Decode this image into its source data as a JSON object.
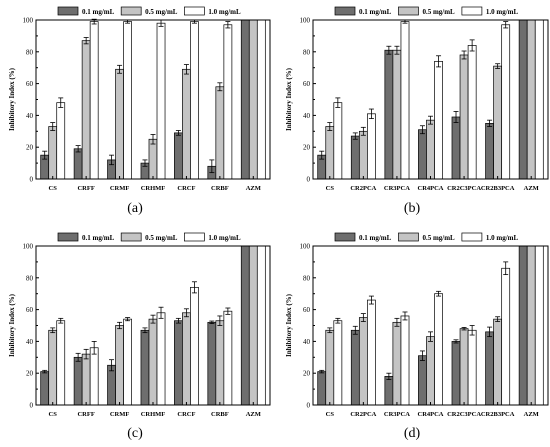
{
  "chart_data": [
    {
      "type": "bar",
      "panel_label": "(a)",
      "ylabel": "Inhibitory Index (%)",
      "ylim": [
        0,
        100
      ],
      "yticks": [
        0,
        20,
        40,
        60,
        80,
        100
      ],
      "legend": "top",
      "categories": [
        "CS",
        "CRFF",
        "CRMF",
        "CRHMF",
        "CRCF",
        "CRBF",
        "AZM"
      ],
      "series": [
        {
          "name": "0.1 mg/mL",
          "color": "#6e6e6e",
          "values": [
            15,
            19,
            12,
            10,
            29,
            8,
            100
          ],
          "errors": [
            2.5,
            2,
            3,
            2,
            1.5,
            4,
            0
          ]
        },
        {
          "name": "0.5 mg/mL",
          "color": "#c4c4c4",
          "values": [
            33,
            87,
            69,
            25,
            69,
            58,
            100
          ],
          "errors": [
            2.5,
            2,
            2.5,
            3,
            3,
            2.5,
            0
          ]
        },
        {
          "name": "1.0 mg/mL",
          "color": "#ffffff",
          "values": [
            48,
            99,
            99,
            98,
            99,
            97,
            100
          ],
          "errors": [
            3,
            1.5,
            1,
            2,
            1,
            2,
            0
          ]
        }
      ]
    },
    {
      "type": "bar",
      "panel_label": "(b)",
      "ylabel": "Inhibitory Index (%)",
      "ylim": [
        0,
        100
      ],
      "yticks": [
        0,
        20,
        40,
        60,
        80,
        100
      ],
      "legend": "top",
      "categories": [
        "CS",
        "CR2PCA",
        "CR3PCA",
        "CR4PCA",
        "CR2C3PCA",
        "CR2B3PCA",
        "AZM"
      ],
      "series": [
        {
          "name": "0.1 mg/mL",
          "color": "#6e6e6e",
          "values": [
            15,
            27,
            81,
            31,
            39,
            35,
            100
          ],
          "errors": [
            2.5,
            2,
            2.5,
            2.5,
            3.5,
            2,
            0
          ]
        },
        {
          "name": "0.5 mg/mL",
          "color": "#c4c4c4",
          "values": [
            33,
            30,
            81,
            37,
            78,
            71,
            100
          ],
          "errors": [
            2.5,
            2.5,
            2.5,
            2.5,
            2.5,
            1.5,
            0
          ]
        },
        {
          "name": "1.0 mg/mL",
          "color": "#ffffff",
          "values": [
            48,
            41,
            99,
            74,
            84,
            97,
            100
          ],
          "errors": [
            3,
            3,
            1,
            3.5,
            3.5,
            2,
            0
          ]
        }
      ]
    },
    {
      "type": "bar",
      "panel_label": "(c)",
      "ylabel": "Inhibitory Index (%)",
      "ylim": [
        0,
        100
      ],
      "yticks": [
        0,
        20,
        40,
        60,
        80,
        100
      ],
      "legend": "top",
      "categories": [
        "CS",
        "CRFF",
        "CRMF",
        "CRHMF",
        "CRCF",
        "CRBF",
        "AZM"
      ],
      "series": [
        {
          "name": "0.1 mg/mL",
          "color": "#6e6e6e",
          "values": [
            21,
            30,
            25,
            47,
            53,
            52,
            100
          ],
          "errors": [
            0.8,
            2.5,
            3.5,
            1.5,
            1.5,
            0.8,
            0
          ]
        },
        {
          "name": "0.5 mg/mL",
          "color": "#c4c4c4",
          "values": [
            47,
            32,
            50,
            54,
            58,
            53,
            100
          ],
          "errors": [
            1.5,
            3,
            2,
            2.5,
            2.5,
            3,
            0
          ]
        },
        {
          "name": "1.0 mg/mL",
          "color": "#ffffff",
          "values": [
            53,
            36,
            54,
            58,
            74,
            59,
            100
          ],
          "errors": [
            1.5,
            4,
            1,
            3.5,
            3.5,
            2,
            0
          ]
        }
      ]
    },
    {
      "type": "bar",
      "panel_label": "(d)",
      "ylabel": "Inhibitory Index (%)",
      "ylim": [
        0,
        100
      ],
      "yticks": [
        0,
        20,
        40,
        60,
        80,
        100
      ],
      "legend": "top",
      "categories": [
        "CS",
        "CR2PCA",
        "CR3PCA",
        "CR4PCA",
        "CR2C3PCA",
        "CR2B3PCA",
        "AZM"
      ],
      "series": [
        {
          "name": "0.1 mg/mL",
          "color": "#6e6e6e",
          "values": [
            21,
            47,
            18,
            31,
            40,
            46,
            100
          ],
          "errors": [
            0.8,
            2.5,
            2,
            3,
            1,
            3,
            0
          ]
        },
        {
          "name": "0.5 mg/mL",
          "color": "#c4c4c4",
          "values": [
            47,
            55,
            52,
            43,
            48,
            54,
            100
          ],
          "errors": [
            1.5,
            2.5,
            2.5,
            3,
            0.8,
            1.5,
            0
          ]
        },
        {
          "name": "1.0 mg/mL",
          "color": "#ffffff",
          "values": [
            53,
            66,
            56,
            70,
            47,
            86,
            100
          ],
          "errors": [
            1.5,
            2.5,
            2.5,
            1.5,
            3,
            4,
            0
          ]
        }
      ]
    }
  ]
}
